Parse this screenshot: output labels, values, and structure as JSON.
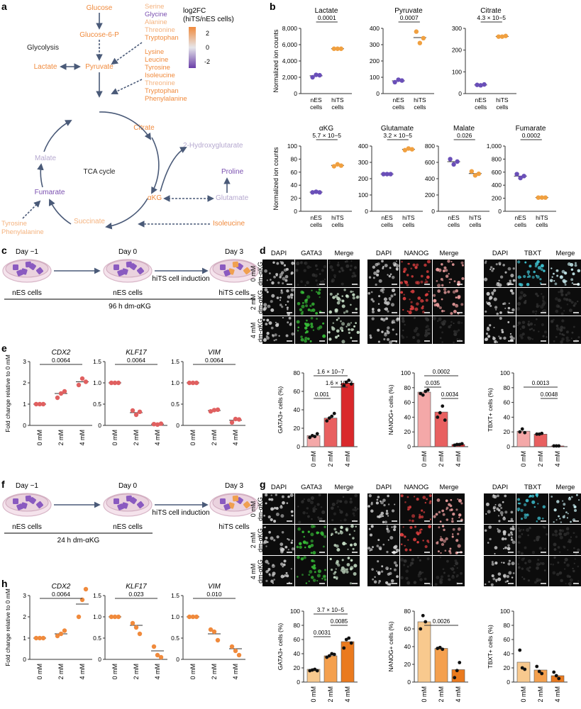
{
  "panel_labels": [
    "a",
    "b",
    "c",
    "d",
    "e",
    "f",
    "g",
    "h"
  ],
  "a": {
    "colorbar_title_line1": "log2FC",
    "colorbar_title_line2": "(hiTS/nES cells)",
    "colorbar_ticks": [
      "2",
      "0",
      "-2"
    ],
    "metabolites": {
      "glucose": "Glucose",
      "g6p": "Glucose-6-P",
      "pyruvate": "Pyruvate",
      "lactate": "Lactate",
      "citrate": "Citrate",
      "akg": "αKG",
      "succinate": "Succinate",
      "fumarate": "Fumarate",
      "malate": "Malate",
      "hydroxyglutarate": "2-Hydroxyglutarate",
      "proline": "Proline",
      "glutamate": "Glutamate",
      "isoleucine": "Isoleucine"
    },
    "glycolysis_label": "Glycolysis",
    "tca_label": "TCA cycle",
    "aa_list_1": [
      "Serine",
      "Glycine",
      "Alanine",
      "Threonine",
      "Tryptophan"
    ],
    "aa_list_2": [
      "Lysine",
      "Leucine",
      "Tyrosine",
      "Isoleucine",
      "Threonine",
      "Tryptophan",
      "Phenylalanine"
    ],
    "aa_list_3": [
      "Tyrosine",
      "Phenylalanine"
    ],
    "colors": {
      "up": "#f08a3c",
      "down": "#7a4fb0",
      "neutral": "#b5b5c8",
      "arrow": "#4a5a78"
    }
  },
  "b": {
    "ylabel": "Normalized ion counts",
    "xcats": [
      "nES cells",
      "hiTS cells"
    ],
    "plots": [
      {
        "title": "Lactate",
        "yticks": [
          "0",
          "2,000",
          "4,000",
          "6,000",
          "8,000"
        ],
        "ymax": 8000,
        "p": "0.0001",
        "nes": [
          2000,
          2300,
          2250
        ],
        "hits": [
          5500,
          5500,
          5500
        ]
      },
      {
        "title": "Pyruvate",
        "yticks": [
          "0",
          "100",
          "200",
          "300",
          "400"
        ],
        "ymax": 400,
        "p": "0.0007",
        "nes": [
          70,
          85,
          80
        ],
        "hits": [
          380,
          310,
          340
        ]
      },
      {
        "title": "Citrate",
        "yticks": [
          "0",
          "100",
          "200",
          "300"
        ],
        "ymax": 300,
        "p": "4.3 × 10−5",
        "nes": [
          40,
          38,
          42
        ],
        "hits": [
          262,
          262,
          265
        ]
      },
      {
        "title": "αKG",
        "yticks": [
          "0",
          "20",
          "40",
          "60",
          "80",
          "100"
        ],
        "ymax": 100,
        "p": "5.7 × 10−5",
        "nes": [
          29,
          30,
          29
        ],
        "hits": [
          69,
          72,
          70
        ]
      },
      {
        "title": "Glutamate",
        "yticks": [
          "0",
          "100",
          "200",
          "300",
          "400"
        ],
        "ymax": 400,
        "p": "3.2 × 10−5",
        "nes": [
          228,
          228,
          228
        ],
        "hits": [
          375,
          385,
          380
        ]
      },
      {
        "title": "Malate",
        "yticks": [
          "0",
          "200",
          "400",
          "600",
          "800"
        ],
        "ymax": 800,
        "p": "0.026",
        "nes": [
          640,
          575,
          610
        ],
        "hits": [
          490,
          440,
          460
        ]
      },
      {
        "title": "Fumarate",
        "yticks": [
          "0",
          "200",
          "400",
          "600",
          "800",
          "1,000"
        ],
        "ymax": 1000,
        "p": "0.0002",
        "nes": [
          570,
          510,
          540
        ],
        "hits": [
          210,
          210,
          210
        ]
      }
    ]
  },
  "c": {
    "days": [
      "Day −1",
      "Day 0",
      "Day 3"
    ],
    "cells": [
      "nES cells",
      "nES cells",
      "hiTS cells"
    ],
    "arrow_label": "hiTS cell induction",
    "bar_label": "96 h dm-αKG"
  },
  "f": {
    "days": [
      "Day −1",
      "Day 0",
      "Day 3"
    ],
    "cells": [
      "nES cells",
      "nES cells",
      "hiTS cells"
    ],
    "arrow_label": "hiTS cell induction",
    "bar_label": "24 h dm-αKG"
  },
  "micro_headers": [
    [
      "DAPI",
      "GATA3",
      "Merge"
    ],
    [
      "DAPI",
      "NANOG",
      "Merge"
    ],
    [
      "DAPI",
      "TBXT",
      "Merge"
    ]
  ],
  "micro_rows": [
    [
      "0 mM",
      "dm-αKG"
    ],
    [
      "2 mM",
      "dm-αKG"
    ],
    [
      "4 mM",
      "dm-αKG"
    ]
  ],
  "conditions": [
    "0 mM",
    "2 mM",
    "4 mM"
  ],
  "e": {
    "ylabel": "Fold change relative to 0 mM",
    "plots": [
      {
        "title": "CDX2",
        "yticks": [
          "0",
          "1",
          "2",
          "3"
        ],
        "ymax": 3,
        "p": "0.0064",
        "means": [
          1,
          1.5,
          2.05
        ],
        "points": [
          [
            1,
            1,
            1
          ],
          [
            1.3,
            1.5,
            1.6
          ],
          [
            1.9,
            2.2,
            2.05
          ]
        ]
      },
      {
        "title": "KLF17",
        "yticks": [
          "0",
          "0.5",
          "1.0",
          "1.5"
        ],
        "ymax": 1.5,
        "p": "0.0064",
        "means": [
          1,
          0.3,
          0.03
        ],
        "points": [
          [
            1,
            1,
            1
          ],
          [
            0.35,
            0.25,
            0.32
          ],
          [
            0.03,
            0.02,
            0.04
          ]
        ]
      },
      {
        "title": "VIM",
        "yticks": [
          "0",
          "0.5",
          "1.0",
          "1.5"
        ],
        "ymax": 1.5,
        "p": "0.0064",
        "means": [
          1,
          0.35,
          0.12
        ],
        "points": [
          [
            1,
            1,
            1
          ],
          [
            0.33,
            0.36,
            0.37
          ],
          [
            0.07,
            0.15,
            0.14
          ]
        ]
      }
    ],
    "color": "#e06060"
  },
  "h": {
    "ylabel": "Fold change relative to 0 mM",
    "plots": [
      {
        "title": "CDX2",
        "yticks": [
          "0",
          "1",
          "2",
          "3"
        ],
        "ymax": 3,
        "p": "0.0064",
        "means": [
          1,
          1.2,
          2.6
        ],
        "points": [
          [
            1,
            1,
            1
          ],
          [
            1.1,
            1.2,
            1.35
          ],
          [
            2.0,
            2.8,
            3.3
          ]
        ]
      },
      {
        "title": "KLF17",
        "yticks": [
          "0",
          "0.5",
          "1.0",
          "1.5"
        ],
        "ymax": 1.5,
        "p": "0.023",
        "means": [
          1,
          0.8,
          0.2
        ],
        "points": [
          [
            1,
            1,
            1
          ],
          [
            0.85,
            0.75,
            0.6
          ],
          [
            0.3,
            0.1,
            0.05
          ]
        ]
      },
      {
        "title": "VIM",
        "yticks": [
          "0",
          "0.5",
          "1.0",
          "1.5"
        ],
        "ymax": 1.5,
        "p": "0.010",
        "means": [
          1,
          0.6,
          0.25
        ],
        "points": [
          [
            1,
            1,
            1
          ],
          [
            0.7,
            0.65,
            0.45
          ],
          [
            0.3,
            0.2,
            0.1
          ]
        ]
      }
    ],
    "color": "#f08a3c"
  },
  "d_bars": {
    "colors": [
      "#f4a8a8",
      "#e86060",
      "#d9282b"
    ],
    "plots": [
      {
        "ylabel": "GATA3+ cells (%)",
        "yticks": [
          "0",
          "20",
          "40",
          "60",
          "80"
        ],
        "ymax": 80,
        "values": [
          12,
          31,
          69
        ],
        "points": [
          [
            10,
            12,
            11,
            14
          ],
          [
            28,
            31,
            33,
            36
          ],
          [
            66,
            70,
            72,
            68
          ]
        ],
        "pvals": [
          {
            "text": "1.6 × 10−7",
            "from": 0,
            "to": 2,
            "level": 2
          },
          {
            "text": "1.6 × 10−7",
            "from": 1,
            "to": 2,
            "level": 1
          },
          {
            "text": "0.001",
            "from": 0,
            "to": 1,
            "level": 0
          }
        ]
      },
      {
        "ylabel": "NANOG+ cells (%)",
        "yticks": [
          "0",
          "20",
          "40",
          "60",
          "80",
          "100"
        ],
        "ymax": 100,
        "values": [
          74,
          47,
          3
        ],
        "points": [
          [
            72,
            70,
            75,
            77
          ],
          [
            40,
            46,
            55,
            36
          ],
          [
            2,
            3,
            3,
            4
          ]
        ],
        "pvals": [
          {
            "text": "0.0002",
            "from": 0,
            "to": 2,
            "level": 2
          },
          {
            "text": "0.035",
            "from": 0,
            "to": 1,
            "level": 1
          },
          {
            "text": "0.0034",
            "from": 1,
            "to": 2,
            "level": 0
          }
        ]
      },
      {
        "ylabel": "TBXT+ cells (%)",
        "yticks": [
          "0",
          "20",
          "40",
          "60",
          "80",
          "100"
        ],
        "ymax": 100,
        "values": [
          21,
          17,
          1
        ],
        "points": [
          [
            20,
            24,
            19
          ],
          [
            17,
            17,
            18
          ],
          [
            1,
            1,
            1
          ]
        ],
        "pvals": [
          {
            "text": "0.0013",
            "from": 0,
            "to": 2,
            "level": 1
          },
          {
            "text": "0.0048",
            "from": 1,
            "to": 2,
            "level": 0
          }
        ]
      }
    ]
  },
  "g_bars": {
    "colors": [
      "#f8c98e",
      "#f4a04e",
      "#ea7a1e"
    ],
    "plots": [
      {
        "ylabel": "GATA3+ cells (%)",
        "yticks": [
          "0",
          "20",
          "40",
          "60",
          "80",
          "100"
        ],
        "ymax": 100,
        "values": [
          18,
          37,
          57
        ],
        "points": [
          [
            16,
            17,
            18,
            16
          ],
          [
            35,
            37,
            40,
            39
          ],
          [
            48,
            60,
            62,
            55
          ]
        ],
        "pvals": [
          {
            "text": "3.7 × 10−5",
            "from": 0,
            "to": 2,
            "level": 2
          },
          {
            "text": "0.0031",
            "from": 0,
            "to": 1,
            "level": 0
          },
          {
            "text": "0.0085",
            "from": 1,
            "to": 2,
            "level": 1
          }
        ]
      },
      {
        "ylabel": "NANOG+ cells (%)",
        "yticks": [
          "0",
          "20",
          "40",
          "60",
          "80"
        ],
        "ymax": 80,
        "values": [
          68,
          38,
          14
        ],
        "points": [
          [
            60,
            75,
            68
          ],
          [
            38,
            39,
            37
          ],
          [
            5,
            13,
            22
          ]
        ],
        "pvals": [
          {
            "text": "0.0026",
            "from": 0,
            "to": 2,
            "level": 1
          }
        ]
      },
      {
        "ylabel": "TBXT+ cells (%)",
        "yticks": [
          "0",
          "20",
          "40",
          "60",
          "80",
          "100"
        ],
        "ymax": 100,
        "values": [
          28,
          17,
          9
        ],
        "points": [
          [
            45,
            20,
            18
          ],
          [
            22,
            15,
            12
          ],
          [
            14,
            9,
            5
          ]
        ],
        "pvals": []
      }
    ]
  }
}
